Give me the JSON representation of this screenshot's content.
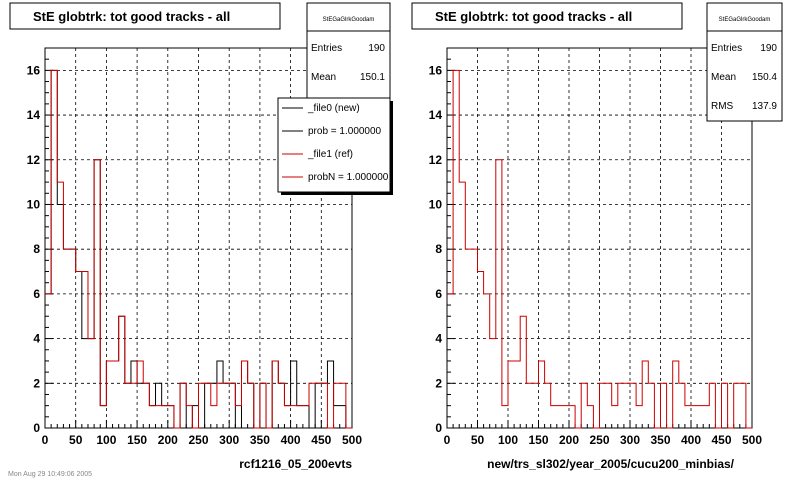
{
  "footer_text": "Mon Aug 29 10:49:06 2005",
  "chart_data": [
    {
      "type": "histogram",
      "title": "StE globtrk: tot good tracks - all",
      "xlabel": "rcf1216_05_200evts",
      "xlim": [
        0,
        500
      ],
      "ylim": [
        0,
        17
      ],
      "x_ticks": [
        0,
        50,
        100,
        150,
        200,
        250,
        300,
        350,
        400,
        450,
        500
      ],
      "y_ticks": [
        0,
        2,
        4,
        6,
        8,
        10,
        12,
        14,
        16
      ],
      "grid": true,
      "bin_width": 10,
      "stats": {
        "name": "StEGaGlrkGoodam",
        "entries_label": "Entries",
        "entries": "190",
        "mean_label": "Mean",
        "mean": "150.1"
      },
      "legend": [
        {
          "label": "_file0 (new)",
          "color": "#000000"
        },
        {
          "label": "prob = 1.000000",
          "color": "#000000"
        },
        {
          "label": "_file1 (ref)",
          "color": "#cc0000"
        },
        {
          "label": "probN = 1.000000",
          "color": "#cc0000"
        }
      ],
      "series": [
        {
          "name": "_file0 (new)",
          "color": "#000000",
          "values": [
            6,
            16,
            10,
            8,
            8,
            7,
            4,
            4,
            12,
            1,
            3,
            3,
            5,
            2,
            3,
            2,
            2,
            1,
            2,
            1,
            1,
            0,
            2,
            0,
            1,
            0,
            2,
            2,
            3,
            2,
            2,
            0,
            3,
            2,
            0,
            2,
            0,
            3,
            2,
            1,
            3,
            1,
            1,
            0,
            2,
            2,
            3,
            1,
            1,
            0
          ]
        },
        {
          "name": "_file1 (ref)",
          "color": "#cc0000",
          "values": [
            6,
            16,
            11,
            8,
            8,
            7,
            7,
            4,
            12,
            1,
            3,
            3,
            5,
            2,
            2,
            3,
            2,
            1,
            1,
            1,
            1,
            0,
            2,
            1,
            0,
            2,
            2,
            1,
            2,
            2,
            2,
            1,
            3,
            2,
            0,
            2,
            0,
            3,
            2,
            1,
            1,
            1,
            1,
            2,
            2,
            2,
            0,
            2,
            2,
            0
          ]
        }
      ]
    },
    {
      "type": "histogram",
      "title": "StE globtrk: tot good tracks - all",
      "xlabel": "new/trs_sl302/year_2005/cucu200_minbias/",
      "xlim": [
        0,
        500
      ],
      "ylim": [
        0,
        17
      ],
      "x_ticks": [
        0,
        50,
        100,
        150,
        200,
        250,
        300,
        350,
        400,
        450,
        500
      ],
      "y_ticks": [
        0,
        2,
        4,
        6,
        8,
        10,
        12,
        14,
        16
      ],
      "grid": true,
      "bin_width": 10,
      "stats": {
        "name": "StEGaGlrkGoodam",
        "entries_label": "Entries",
        "entries": "190",
        "mean_label": "Mean",
        "mean": "150.4",
        "rms_label": "RMS",
        "rms": "137.9"
      },
      "series": [
        {
          "name": "",
          "color": "#cc0000",
          "values": [
            6,
            16,
            11,
            8,
            8,
            7,
            6,
            4,
            12,
            1,
            3,
            3,
            5,
            2,
            2,
            3,
            2,
            1,
            1,
            1,
            1,
            0,
            2,
            1,
            0,
            2,
            2,
            1,
            2,
            2,
            2,
            1,
            3,
            2,
            0,
            2,
            0,
            3,
            2,
            1,
            1,
            1,
            1,
            2,
            0,
            2,
            0,
            2,
            2,
            0
          ]
        }
      ]
    }
  ]
}
